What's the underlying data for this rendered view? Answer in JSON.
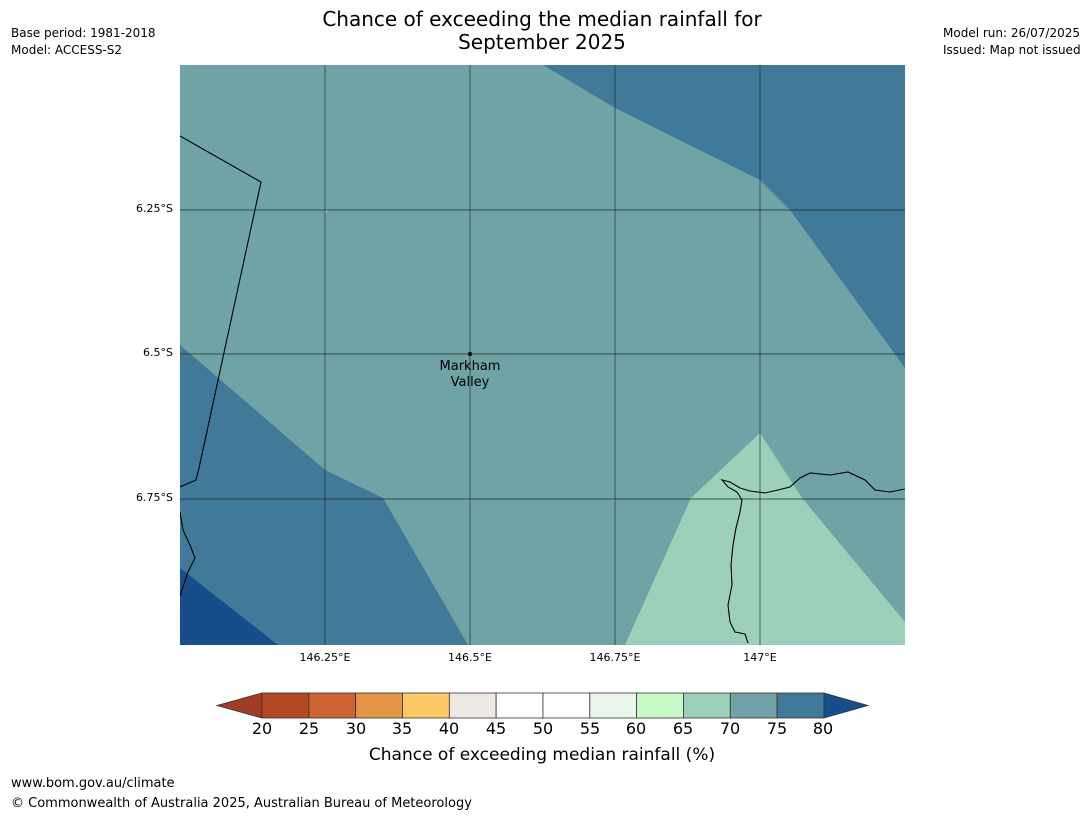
{
  "header": {
    "title_line1": "Chance of exceeding the median rainfall for",
    "title_line2": "September 2025",
    "base_period": "Base period: 1981-2018",
    "model": "Model: ACCESS-S2",
    "model_run": "Model run: 26/07/2025",
    "issued": "Issued: Map not issued"
  },
  "map": {
    "lat_labels": [
      "6.25°S",
      "6.5°S",
      "6.75°S"
    ],
    "lon_labels": [
      "146.25°E",
      "146.5°E",
      "146.75°E",
      "147°E"
    ],
    "place": {
      "line1": "Markham",
      "line2": "Valley"
    },
    "colors": {
      "band_70_75": "#6fa3a5",
      "band_75_80": "#417a98",
      "band_80_plus": "#154e8a",
      "band_65_70": "#9dd0b8",
      "coastline": "#000000",
      "gridline": "#1f2a2a"
    }
  },
  "colorbar": {
    "ticks": [
      "20",
      "25",
      "30",
      "35",
      "40",
      "45",
      "50",
      "55",
      "60",
      "65",
      "70",
      "75",
      "80"
    ],
    "under_color": "#a13d26",
    "over_color": "#154e8a",
    "colors": [
      "#b24a26",
      "#cd6330",
      "#e29646",
      "#fdc964",
      "#eee8e2",
      "#ffffff",
      "#ffffff",
      "#eaf6ea",
      "#c8fac8",
      "#9dd0b8",
      "#6fa3a5",
      "#417a98"
    ],
    "label": "Chance of exceeding median rainfall (%)"
  },
  "footer": {
    "url": "www.bom.gov.au/climate",
    "copyright": "© Commonwealth of Australia 2025, Australian Bureau of Meteorology"
  }
}
